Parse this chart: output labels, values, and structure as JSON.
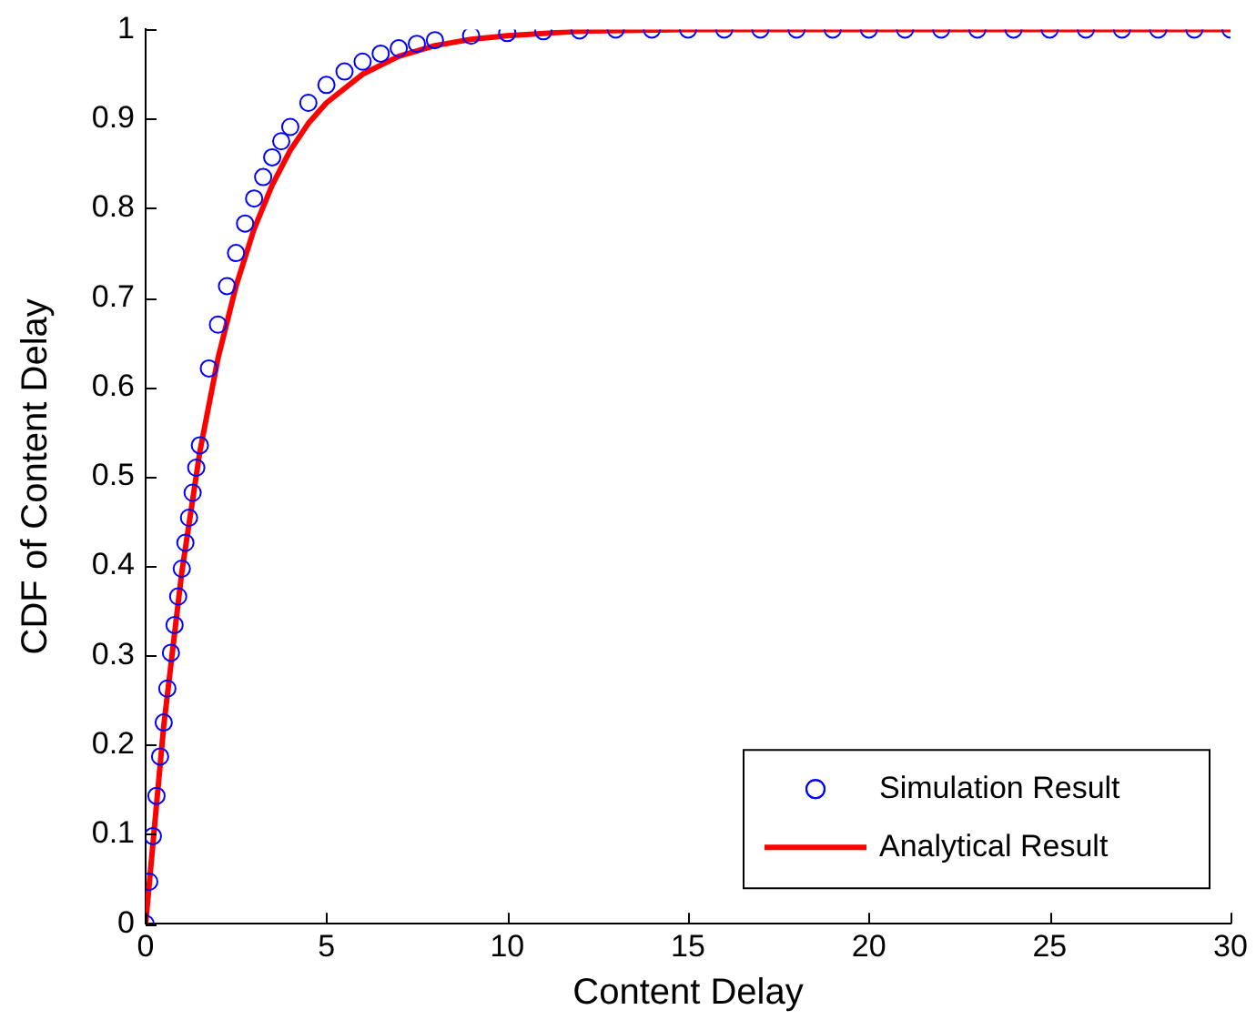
{
  "chart_data": {
    "type": "line",
    "xlabel": "Content Delay",
    "ylabel": "CDF of Content Delay",
    "xlim": [
      0,
      30
    ],
    "ylim": [
      0,
      1
    ],
    "xticks": [
      0,
      5,
      10,
      15,
      20,
      25,
      30
    ],
    "yticks": [
      0,
      0.1,
      0.2,
      0.3,
      0.4,
      0.5,
      0.6,
      0.7,
      0.8,
      0.9,
      1
    ],
    "grid": false,
    "legend": "bottom right",
    "series": [
      {
        "name": "Simulation Result",
        "type": "scatter",
        "marker": "circle",
        "color": "#0000ff",
        "x": [
          0,
          0.1,
          0.2,
          0.3,
          0.4,
          0.5,
          0.6,
          0.7,
          0.8,
          0.9,
          1.0,
          1.1,
          1.2,
          1.3,
          1.4,
          1.5,
          1.75,
          2,
          2.25,
          2.5,
          2.75,
          3,
          3.25,
          3.5,
          3.75,
          4,
          4.5,
          5,
          5.5,
          6,
          6.5,
          7,
          7.5,
          8,
          9,
          10,
          11,
          12,
          13,
          14,
          15,
          16,
          17,
          18,
          19,
          20,
          21,
          22,
          23,
          24,
          25,
          26,
          27,
          28,
          29,
          30
        ],
        "values": [
          0,
          0.047,
          0.098,
          0.143,
          0.187,
          0.225,
          0.263,
          0.303,
          0.334,
          0.366,
          0.397,
          0.426,
          0.454,
          0.482,
          0.51,
          0.535,
          0.621,
          0.67,
          0.713,
          0.75,
          0.783,
          0.811,
          0.835,
          0.857,
          0.875,
          0.891,
          0.918,
          0.938,
          0.953,
          0.964,
          0.973,
          0.979,
          0.984,
          0.988,
          0.993,
          0.996,
          0.998,
          0.999,
          1,
          1,
          1,
          1,
          1,
          1,
          1,
          1,
          1,
          1,
          1,
          1,
          1,
          1,
          1,
          1,
          1,
          1
        ]
      },
      {
        "name": "Analytical Result",
        "type": "line",
        "marker": "none",
        "line_style": "solid",
        "color": "#ff0000",
        "x": [
          0,
          0.5,
          1,
          1.5,
          2,
          2.5,
          3,
          3.5,
          4,
          4.5,
          5,
          6,
          7,
          8,
          9,
          10,
          12,
          15,
          20,
          30
        ],
        "values": [
          0,
          0.221,
          0.393,
          0.528,
          0.632,
          0.713,
          0.777,
          0.826,
          0.865,
          0.895,
          0.918,
          0.95,
          0.97,
          0.982,
          0.989,
          0.993,
          0.998,
          1,
          1,
          1
        ]
      }
    ]
  }
}
